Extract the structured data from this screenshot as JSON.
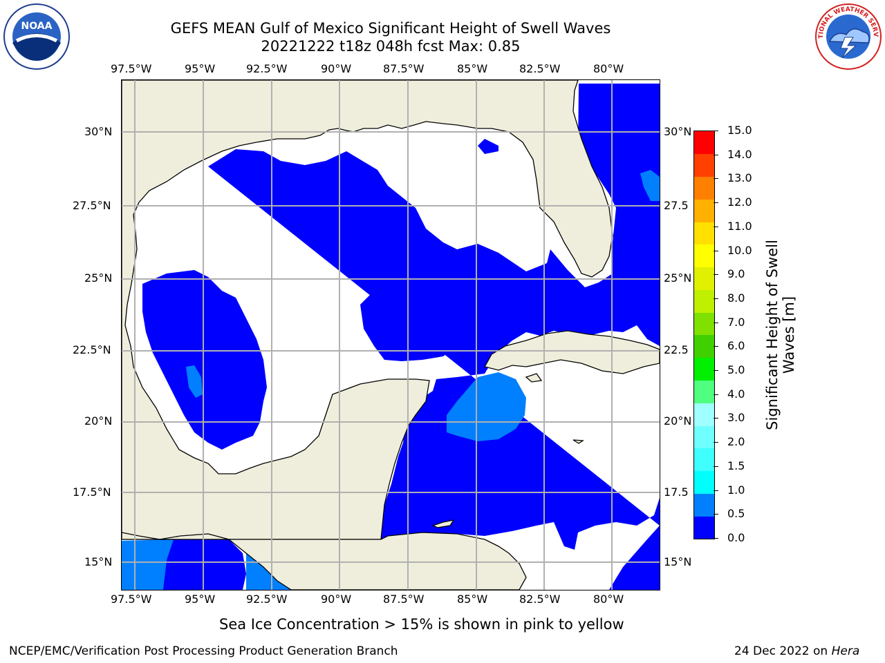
{
  "title": {
    "line1": "GEFS MEAN Gulf of Mexico Significant Height of Swell Waves",
    "line2": "20221222 t18z 048h fcst   Max: 0.85"
  },
  "logos": {
    "left": {
      "text": "NOAA",
      "icon": "noaa-logo-icon"
    },
    "right": {
      "text": "NATIONAL WEATHER SERVICE",
      "icon": "nws-logo-icon"
    }
  },
  "map": {
    "lon_ticks": [
      "97.5°W",
      "95°W",
      "92.5°W",
      "90°W",
      "87.5°W",
      "85°W",
      "82.5°W",
      "80°W"
    ],
    "lat_ticks_left": [
      "30°N",
      "27.5°N",
      "25°N",
      "22.5°N",
      "20°N",
      "17.5°N",
      "15°N"
    ],
    "lat_ticks_right": [
      "30°N",
      "27.5",
      "25°N",
      "22.5",
      "20°N",
      "17.5",
      "15°N"
    ],
    "colors": {
      "land": "#efeedc",
      "ocean_white": "#ffffff",
      "wave_0_0_5": "#0000ff",
      "wave_0_5_1_0": "#0080ff",
      "coast": "#000000",
      "grid": "#b0b0b0"
    }
  },
  "colorbar": {
    "labels": [
      "15.0",
      "14.0",
      "13.0",
      "12.0",
      "11.0",
      "10.0",
      "9.0",
      "8.0",
      "7.0",
      "6.0",
      "5.0",
      "4.0",
      "3.0",
      "2.0",
      "1.5",
      "1.0",
      "0.5",
      "0.0"
    ],
    "colors_bottom_to_top": [
      "#0000ff",
      "#0080ff",
      "#00ffff",
      "#40ffff",
      "#70ffff",
      "#a0ffff",
      "#50ff80",
      "#00f000",
      "#40d000",
      "#80e000",
      "#c0f000",
      "#e0f000",
      "#ffff00",
      "#ffe000",
      "#ffb000",
      "#ff8000",
      "#ff4000",
      "#ff0000"
    ],
    "title": "Significant Height of Swell Waves [m]",
    "title_line1": "Significant Height of Swell",
    "title_line2": "Waves [m]"
  },
  "footnote": "Sea Ice Concentration > 15% is shown in pink to yellow",
  "footer": {
    "left": "NCEP/EMC/Verification Post Processing Product Generation Branch",
    "right_prefix": "24 Dec 2022 on ",
    "right_italic": "Hera"
  }
}
